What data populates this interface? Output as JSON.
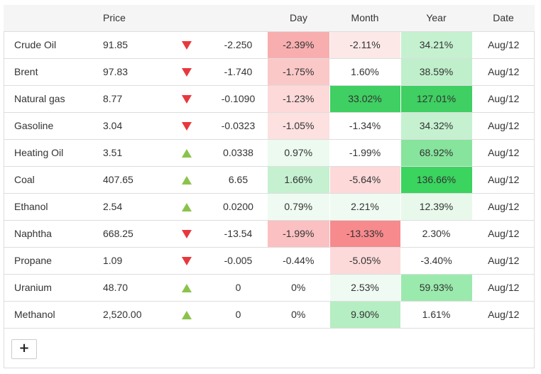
{
  "table": {
    "headers": {
      "name": "",
      "price": "Price",
      "day": "Day",
      "month": "Month",
      "year": "Year",
      "date": "Date"
    },
    "rows": [
      {
        "name": "Crude Oil",
        "price": "91.85",
        "direction": "down",
        "change": "-2.250",
        "day": "-2.39%",
        "month": "-2.11%",
        "year": "34.21%",
        "date": "Aug/12",
        "day_color": "#f8aeaf",
        "month_color": "#fde8e8",
        "year_color": "#c5f1d0"
      },
      {
        "name": "Brent",
        "price": "97.83",
        "direction": "down",
        "change": "-1.740",
        "day": "-1.75%",
        "month": "1.60%",
        "year": "38.59%",
        "date": "Aug/12",
        "day_color": "#fbc8c8",
        "month_color": "#ffffff",
        "year_color": "#c0efcb"
      },
      {
        "name": "Natural gas",
        "price": "8.77",
        "direction": "down",
        "change": "-0.1090",
        "day": "-1.23%",
        "month": "33.02%",
        "year": "127.01%",
        "date": "Aug/12",
        "day_color": "#fdd9d9",
        "month_color": "#3fcf62",
        "year_color": "#3fcf62"
      },
      {
        "name": "Gasoline",
        "price": "3.04",
        "direction": "down",
        "change": "-0.0323",
        "day": "-1.05%",
        "month": "-1.34%",
        "year": "34.32%",
        "date": "Aug/12",
        "day_color": "#fde0e0",
        "month_color": "#ffffff",
        "year_color": "#c5f1d0"
      },
      {
        "name": "Heating Oil",
        "price": "3.51",
        "direction": "up",
        "change": "0.0338",
        "day": "0.97%",
        "month": "-1.99%",
        "year": "68.92%",
        "date": "Aug/12",
        "day_color": "#ecfaef",
        "month_color": "#ffffff",
        "year_color": "#86e49c"
      },
      {
        "name": "Coal",
        "price": "407.65",
        "direction": "up",
        "change": "6.65",
        "day": "1.66%",
        "month": "-5.64%",
        "year": "136.66%",
        "date": "Aug/12",
        "day_color": "#c5f1d0",
        "month_color": "#fdd9d9",
        "year_color": "#3ad45f"
      },
      {
        "name": "Ethanol",
        "price": "2.54",
        "direction": "up",
        "change": "0.0200",
        "day": "0.79%",
        "month": "2.21%",
        "year": "12.39%",
        "date": "Aug/12",
        "day_color": "#effbf2",
        "month_color": "#effbf2",
        "year_color": "#e8f9ec"
      },
      {
        "name": "Naphtha",
        "price": "668.25",
        "direction": "down",
        "change": "-13.54",
        "day": "-1.99%",
        "month": "-13.33%",
        "year": "2.30%",
        "date": "Aug/12",
        "day_color": "#fbc0c1",
        "month_color": "#f78a8c",
        "year_color": "#ffffff"
      },
      {
        "name": "Propane",
        "price": "1.09",
        "direction": "down",
        "change": "-0.005",
        "day": "-0.44%",
        "month": "-5.05%",
        "year": "-3.40%",
        "date": "Aug/12",
        "day_color": "#ffffff",
        "month_color": "#fddada",
        "year_color": "#ffffff"
      },
      {
        "name": "Uranium",
        "price": "48.70",
        "direction": "up",
        "change": "0",
        "day": "0%",
        "month": "2.53%",
        "year": "59.93%",
        "date": "Aug/12",
        "day_color": "#ffffff",
        "month_color": "#effbf2",
        "year_color": "#9aeaad"
      },
      {
        "name": "Methanol",
        "price": "2,520.00",
        "direction": "up",
        "change": "0",
        "day": "0%",
        "month": "9.90%",
        "year": "1.61%",
        "date": "Aug/12",
        "day_color": "#ffffff",
        "month_color": "#b5eec2",
        "year_color": "#ffffff"
      }
    ]
  },
  "add_button": {
    "label": "+"
  },
  "icons": {
    "down": "triangle-down-icon",
    "up": "triangle-up-icon"
  }
}
